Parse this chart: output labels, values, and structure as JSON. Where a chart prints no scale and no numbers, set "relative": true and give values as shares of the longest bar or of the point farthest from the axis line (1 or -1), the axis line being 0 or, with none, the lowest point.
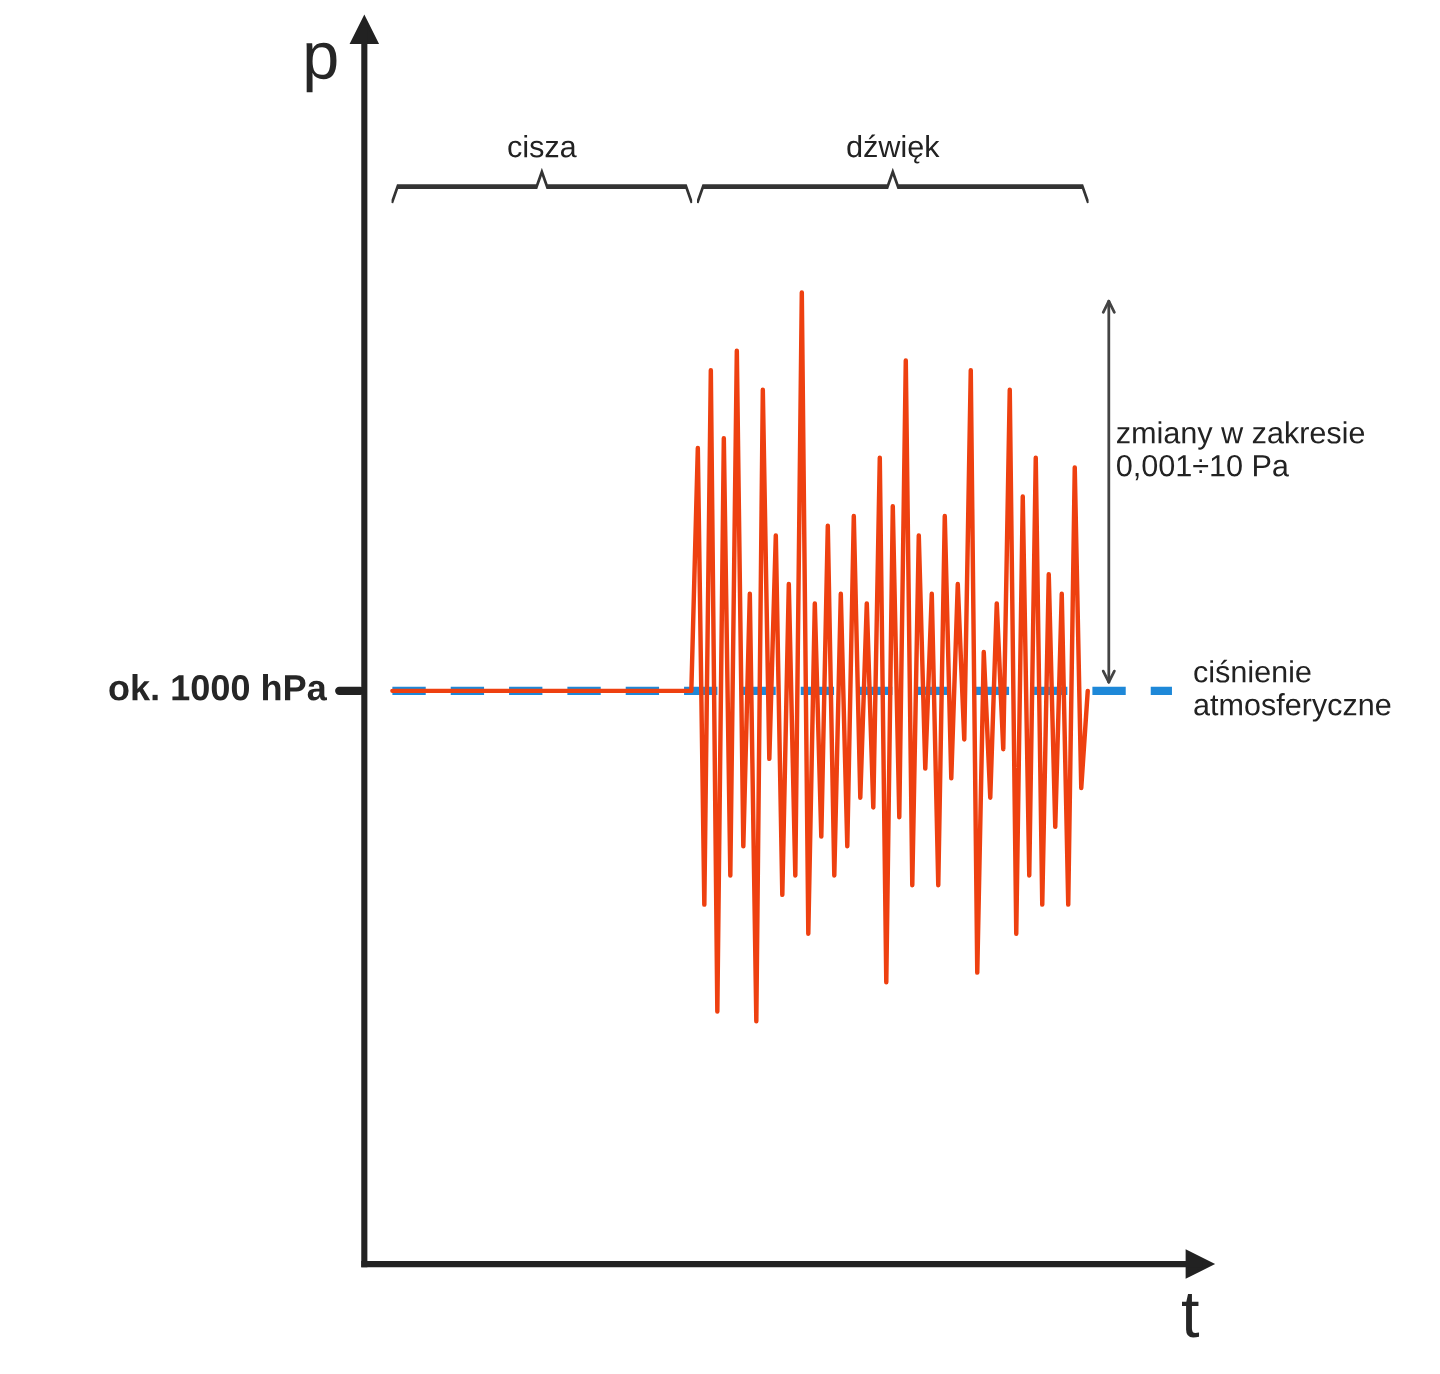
{
  "chart_data": {
    "type": "line",
    "relative": true,
    "xlabel": "t",
    "ylabel": "p",
    "categories": [
      null,
      null,
      null,
      null,
      null,
      null,
      null,
      null,
      null,
      null,
      null,
      null,
      null,
      null,
      null,
      null,
      null,
      null,
      null,
      null,
      null,
      null,
      null,
      null,
      null,
      null,
      null,
      null,
      null,
      null,
      null,
      null,
      null,
      null,
      null,
      null,
      null,
      null,
      null,
      null,
      null,
      null,
      null,
      null,
      null,
      null,
      null,
      null,
      null,
      null,
      null,
      null,
      null,
      null,
      null,
      null,
      null,
      null,
      null,
      null,
      null,
      null,
      null,
      null,
      null,
      null,
      null,
      null,
      null,
      null,
      null,
      null,
      null,
      null,
      null,
      null,
      null,
      null,
      null,
      null,
      null,
      null,
      null,
      null,
      null,
      null,
      null,
      null,
      null,
      null,
      null,
      null,
      null,
      null,
      null,
      null,
      null,
      null,
      null,
      null,
      null,
      null,
      null,
      null,
      null,
      null,
      null,
      null
    ],
    "series": [
      {
        "color": "#ee4010",
        "values": [
          0.59,
          0.59,
          0.59,
          0.59,
          0.59,
          0.59,
          0.59,
          0.59,
          0.59,
          0.59,
          0.59,
          0.59,
          0.59,
          0.59,
          0.59,
          0.59,
          0.59,
          0.59,
          0.59,
          0.59,
          0.59,
          0.59,
          0.59,
          0.59,
          0.59,
          0.59,
          0.59,
          0.59,
          0.59,
          0.59,
          0.59,
          0.59,
          0.59,
          0.59,
          0.59,
          0.59,
          0.59,
          0.59,
          0.59,
          0.59,
          0.59,
          0.59,
          0.59,
          0.59,
          0.59,
          0.59,
          0.59,
          0.84,
          0.37,
          0.92,
          0.26,
          0.85,
          0.4,
          0.94,
          0.43,
          0.69,
          0.25,
          0.9,
          0.52,
          0.75,
          0.38,
          0.7,
          0.4,
          1.0,
          0.34,
          0.68,
          0.44,
          0.76,
          0.4,
          0.69,
          0.43,
          0.77,
          0.48,
          0.68,
          0.47,
          0.83,
          0.29,
          0.78,
          0.46,
          0.93,
          0.39,
          0.75,
          0.51,
          0.69,
          0.39,
          0.77,
          0.5,
          0.7,
          0.54,
          0.92,
          0.3,
          0.63,
          0.48,
          0.68,
          0.53,
          0.9,
          0.34,
          0.79,
          0.4,
          0.83,
          0.37,
          0.71,
          0.45,
          0.69,
          0.37,
          0.82,
          0.49,
          0.59
        ]
      }
    ],
    "ref_lines": [
      {
        "axis": "y",
        "value": 0.59,
        "label": "ciśnienie\natmosferyczne",
        "color": "#1e88d8",
        "line_style": "dashed"
      }
    ],
    "annotations": [
      "ok. 1000 hPa",
      "cisza",
      "dźwięk",
      "zmiany w zakresie\n0,001÷10 Pa"
    ]
  }
}
